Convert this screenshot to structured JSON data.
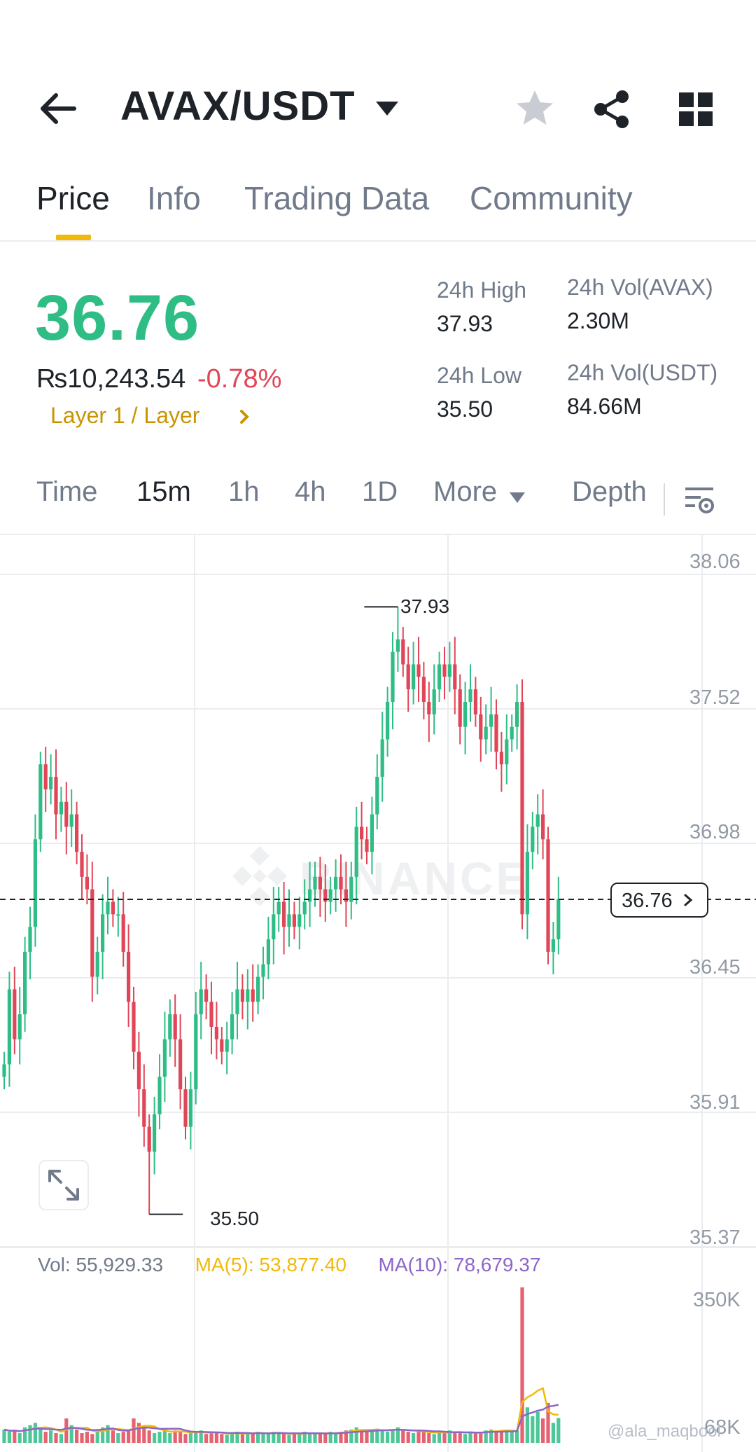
{
  "header": {
    "pair": "AVAX/USDT",
    "icons": [
      "back-arrow-icon",
      "dropdown-caret-icon",
      "star-icon",
      "share-icon",
      "grid-icon"
    ]
  },
  "tabs": [
    {
      "label": "Price",
      "active": true
    },
    {
      "label": "Info",
      "active": false
    },
    {
      "label": "Trading Data",
      "active": false
    },
    {
      "label": "Community",
      "active": false
    }
  ],
  "ticker": {
    "last_price": "36.76",
    "fiat_price": "₨10,243.54",
    "change_pct": "-0.78%",
    "sector": "Layer 1 / Layer",
    "high_label": "24h High",
    "high_value": "37.93",
    "low_label": "24h Low",
    "low_value": "35.50",
    "vol_base_label": "24h Vol(AVAX)",
    "vol_base_value": "2.30M",
    "vol_quote_label": "24h Vol(USDT)",
    "vol_quote_value": "84.66M"
  },
  "intervals": {
    "time": "Time",
    "m15": "15m",
    "h1": "1h",
    "h4": "4h",
    "d1": "1D",
    "more": "More",
    "depth": "Depth",
    "active": "15m"
  },
  "chart_data": {
    "type": "candlestick",
    "price_axis_ticks": [
      "38.06",
      "37.52",
      "36.98",
      "36.45",
      "35.91",
      "35.37"
    ],
    "ylim": [
      35.37,
      38.06
    ],
    "high_marker": "37.93",
    "low_marker": "35.50",
    "current_price": "36.76",
    "volume_axis_ticks": [
      "350K",
      "68K"
    ],
    "volume_info": {
      "vol": "Vol: 55,929.33",
      "ma5": "MA(5): 53,877.40",
      "ma10": "MA(10): 78,679.37"
    },
    "colors": {
      "up": "#2ebd85",
      "down": "#e04657",
      "ma5": "#f0b90b",
      "ma10": "#8d65c8"
    },
    "grid": true,
    "closes": [
      36.1,
      36.4,
      36.2,
      36.3,
      36.55,
      36.65,
      37.0,
      37.3,
      37.2,
      37.25,
      37.1,
      37.15,
      37.05,
      37.1,
      36.95,
      36.85,
      36.8,
      36.45,
      36.55,
      36.7,
      36.75,
      36.7,
      36.7,
      36.55,
      36.35,
      36.15,
      36.0,
      35.85,
      35.75,
      35.9,
      36.05,
      36.2,
      36.3,
      36.2,
      36.0,
      35.85,
      36.0,
      36.3,
      36.4,
      36.35,
      36.25,
      36.2,
      36.15,
      36.2,
      36.3,
      36.4,
      36.35,
      36.4,
      36.35,
      36.45,
      36.5,
      36.6,
      36.7,
      36.75,
      36.65,
      36.7,
      36.65,
      36.7,
      36.75,
      36.8,
      36.85,
      36.8,
      36.75,
      36.8,
      36.85,
      36.8,
      36.75,
      36.85,
      37.05,
      37.0,
      36.95,
      37.1,
      37.25,
      37.4,
      37.55,
      37.75,
      37.8,
      37.7,
      37.6,
      37.7,
      37.65,
      37.55,
      37.5,
      37.6,
      37.7,
      37.65,
      37.7,
      37.6,
      37.45,
      37.55,
      37.6,
      37.5,
      37.4,
      37.45,
      37.5,
      37.35,
      37.3,
      37.4,
      37.45,
      37.55,
      36.7,
      36.95,
      37.05,
      37.1,
      37.0,
      36.55,
      36.6,
      36.76
    ],
    "volumes": [
      30,
      25,
      28,
      22,
      35,
      40,
      45,
      30,
      25,
      28,
      22,
      20,
      55,
      40,
      30,
      22,
      25,
      20,
      30,
      35,
      40,
      28,
      22,
      25,
      30,
      55,
      45,
      35,
      28,
      22,
      25,
      30,
      22,
      28,
      25,
      20,
      22,
      25,
      28,
      20,
      22,
      25,
      20,
      18,
      22,
      25,
      20,
      22,
      20,
      25,
      22,
      20,
      25,
      22,
      20,
      18,
      22,
      20,
      25,
      22,
      20,
      22,
      20,
      25,
      22,
      25,
      28,
      30,
      35,
      28,
      25,
      30,
      32,
      28,
      25,
      30,
      35,
      28,
      25,
      22,
      25,
      28,
      22,
      20,
      25,
      22,
      28,
      25,
      22,
      20,
      25,
      22,
      25,
      28,
      30,
      25,
      28,
      30,
      25,
      28,
      350,
      80,
      60,
      70,
      55,
      90,
      45,
      56
    ]
  },
  "credit": "@ala_maqbool"
}
